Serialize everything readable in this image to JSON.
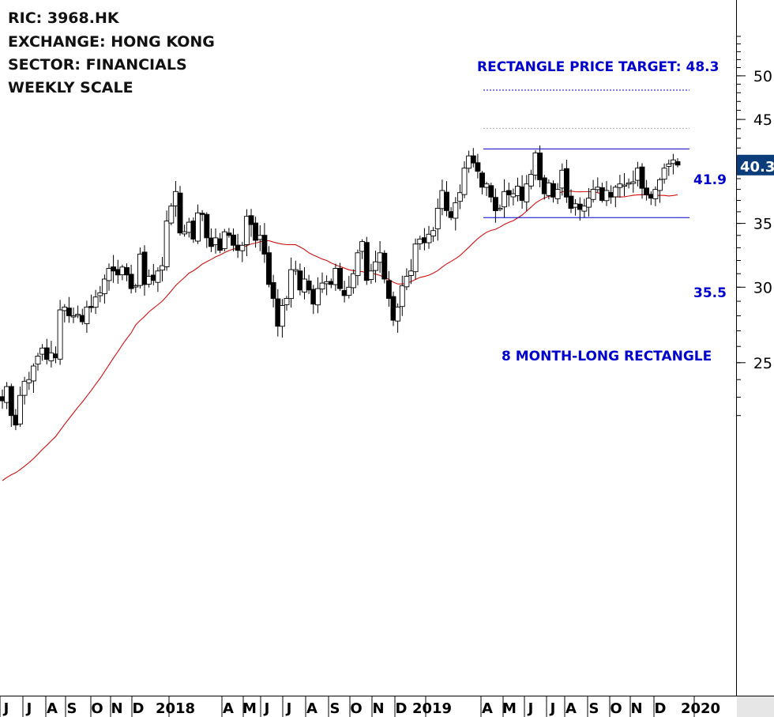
{
  "info": {
    "ric": "RIC: 3968.HK",
    "exchange": "EXCHANGE: HONG KONG",
    "sector": "SECTOR: FINANCIALS",
    "scale": "WEEKLY SCALE"
  },
  "annotations": {
    "target_text": "RECTANGLE PRICE TARGET: 48.3",
    "upper_label": "41.9",
    "lower_label": "35.5",
    "pattern_text": "8 MONTH-LONG RECTANGLE",
    "last_price_label": "40.3"
  },
  "colors": {
    "up_candle_fill": "#ffffff",
    "down_candle_fill": "#000000",
    "moving_average": "#d01010",
    "pattern_lines": "#0000cc",
    "price_badge_bg": "#0a3d7a",
    "target_line": "#0000cc",
    "faint_line": "#aaaaaa"
  },
  "chart_data": {
    "type": "candlestick",
    "scale": "log",
    "y_ticks": [
      25,
      30,
      35,
      45,
      50
    ],
    "x_ticks": [
      "J",
      "J",
      "A",
      "S",
      "O",
      "N",
      "D",
      "2018",
      "A",
      "M",
      "J",
      "J",
      "A",
      "S",
      "O",
      "N",
      "D",
      "2019",
      "A",
      "M",
      "J",
      "J",
      "A",
      "S",
      "O",
      "N",
      "D",
      "2020"
    ],
    "levels": {
      "upper": 41.9,
      "lower": 35.5,
      "target": 48.3,
      "last": 40.3
    },
    "series": [
      {
        "name": "weekly_close",
        "closes": [
          22.8,
          23.6,
          22.0,
          21.5,
          23.1,
          23.9,
          24.0,
          24.8,
          25.4,
          25.9,
          25.2,
          25.6,
          25.3,
          28.4,
          28.6,
          28.0,
          28.0,
          28.1,
          27.6,
          28.6,
          28.6,
          29.3,
          29.6,
          30.6,
          31.4,
          31.2,
          30.9,
          31.5,
          30.9,
          29.9,
          30.1,
          32.5,
          30.2,
          30.8,
          30.5,
          31.2,
          31.6,
          35.2,
          36.5,
          37.8,
          34.2,
          34.3,
          35.1,
          33.7,
          35.9,
          35.8,
          33.8,
          33.1,
          33.8,
          32.8,
          34.3,
          34.0,
          33.2,
          32.8,
          33.2,
          35.6,
          34.9,
          33.6,
          34.0,
          32.5,
          30.2,
          29.2,
          27.3,
          28.7,
          29.2,
          31.3,
          31.3,
          29.8,
          30.6,
          29.8,
          28.8,
          29.9,
          30.3,
          30.4,
          30.2,
          31.4,
          29.9,
          29.4,
          30.0,
          31.0,
          32.6,
          33.5,
          30.5,
          31.2,
          31.9,
          32.6,
          30.6,
          29.2,
          27.7,
          28.6,
          30.1,
          30.8,
          31.2,
          33.3,
          33.7,
          33.4,
          34.1,
          34.4,
          36.3,
          37.9,
          36.1,
          35.5,
          36.8,
          37.7,
          40.0,
          41.2,
          40.5,
          39.7,
          38.2,
          38.5,
          37.3,
          36.1,
          36.3,
          37.8,
          37.5,
          37.6,
          38.3,
          37.0,
          38.5,
          39.4,
          41.5,
          38.9,
          37.6,
          38.6,
          37.3,
          38.0,
          39.8,
          37.3,
          36.3,
          36.7,
          36.2,
          36.5,
          37.2,
          38.0,
          38.2,
          37.0,
          37.9,
          37.3,
          38.2,
          38.5,
          38.4,
          38.6,
          38.7,
          40.0,
          38.1,
          37.5,
          37.2,
          38.0,
          38.9,
          40.0,
          40.4,
          40.8,
          40.3
        ]
      },
      {
        "name": "moving_average",
        "start": 18.8,
        "end": 37.5
      }
    ]
  }
}
